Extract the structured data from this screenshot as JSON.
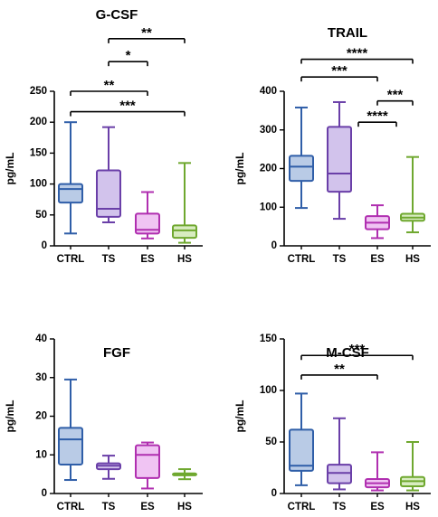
{
  "chart_data": [
    {
      "type": "box",
      "title": "G-CSF",
      "ylabel": "pg/mL",
      "ylim": [
        0,
        250
      ],
      "yticks": [
        0,
        50,
        100,
        150,
        200,
        250
      ],
      "categories": [
        "CTRL",
        "TS",
        "ES",
        "HS"
      ],
      "colors": [
        "#2f5ea8",
        "#6a3fa8",
        "#b02fb0",
        "#6fa82f"
      ],
      "fills": [
        "#b9cbe6",
        "#d2c3ec",
        "#f0c4f3",
        "#d8ecc0"
      ],
      "boxes": [
        {
          "min": 20,
          "q1": 70,
          "median": 92,
          "q3": 100,
          "max": 200
        },
        {
          "min": 38,
          "q1": 47,
          "median": 60,
          "q3": 122,
          "max": 192
        },
        {
          "min": 12,
          "q1": 20,
          "median": 26,
          "q3": 52,
          "max": 87
        },
        {
          "min": 5,
          "q1": 13,
          "median": 25,
          "q3": 33,
          "max": 134
        }
      ],
      "significance": [
        {
          "from": 1,
          "to": 3,
          "label": "**",
          "y": 335
        },
        {
          "from": 1,
          "to": 2,
          "label": "*",
          "y": 298
        },
        {
          "from": 0,
          "to": 2,
          "label": "**",
          "y": 250
        },
        {
          "from": 0,
          "to": 3,
          "label": "***",
          "y": 217
        }
      ]
    },
    {
      "type": "box",
      "title": "TRAIL",
      "ylabel": "pg/mL",
      "ylim": [
        0,
        400
      ],
      "yticks": [
        0,
        100,
        200,
        300,
        400
      ],
      "categories": [
        "CTRL",
        "TS",
        "ES",
        "HS"
      ],
      "colors": [
        "#2f5ea8",
        "#6a3fa8",
        "#b02fb0",
        "#6fa82f"
      ],
      "fills": [
        "#b9cbe6",
        "#d2c3ec",
        "#f0c4f3",
        "#d8ecc0"
      ],
      "boxes": [
        {
          "min": 98,
          "q1": 168,
          "median": 205,
          "q3": 233,
          "max": 358
        },
        {
          "min": 70,
          "q1": 140,
          "median": 187,
          "q3": 308,
          "max": 372
        },
        {
          "min": 20,
          "q1": 43,
          "median": 60,
          "q3": 77,
          "max": 105
        },
        {
          "min": 35,
          "q1": 65,
          "median": 73,
          "q3": 83,
          "max": 230
        }
      ],
      "significance": [
        {
          "from": 0,
          "to": 3,
          "label": "****",
          "y": 483
        },
        {
          "from": 0,
          "to": 2,
          "label": "***",
          "y": 437
        },
        {
          "from": 2,
          "to": 3,
          "label": "***",
          "y": 375
        },
        {
          "from": 2,
          "to": 2,
          "label": "****",
          "y": 320,
          "span_from": 1.5,
          "span_to": 2.5
        }
      ]
    },
    {
      "type": "box",
      "title": "FGF",
      "ylabel": "pg/mL",
      "ylim": [
        0,
        40
      ],
      "yticks": [
        0,
        10,
        20,
        30,
        40
      ],
      "categories": [
        "CTRL",
        "TS",
        "ES",
        "HS"
      ],
      "colors": [
        "#2f5ea8",
        "#6a3fa8",
        "#b02fb0",
        "#6fa82f"
      ],
      "fills": [
        "#b9cbe6",
        "#d2c3ec",
        "#f0c4f3",
        "#d8ecc0"
      ],
      "boxes": [
        {
          "min": 3.5,
          "q1": 7.5,
          "median": 14,
          "q3": 17,
          "max": 29.5
        },
        {
          "min": 3.8,
          "q1": 6.3,
          "median": 7.2,
          "q3": 7.8,
          "max": 9.8
        },
        {
          "min": 1.3,
          "q1": 4,
          "median": 10,
          "q3": 12.5,
          "max": 13.2
        },
        {
          "min": 3.7,
          "q1": 4.7,
          "median": 5,
          "q3": 5.2,
          "max": 6.3
        }
      ],
      "significance": []
    },
    {
      "type": "box",
      "title": "M-CSF",
      "ylabel": "pg/mL",
      "ylim": [
        0,
        150
      ],
      "yticks": [
        0,
        50,
        100,
        150
      ],
      "categories": [
        "CTRL",
        "TS",
        "ES",
        "HS"
      ],
      "colors": [
        "#2f5ea8",
        "#6a3fa8",
        "#b02fb0",
        "#6fa82f"
      ],
      "fills": [
        "#b9cbe6",
        "#d2c3ec",
        "#f0c4f3",
        "#d8ecc0"
      ],
      "boxes": [
        {
          "min": 8,
          "q1": 22,
          "median": 27,
          "q3": 62,
          "max": 97
        },
        {
          "min": 4,
          "q1": 10,
          "median": 20,
          "q3": 28,
          "max": 73
        },
        {
          "min": 3,
          "q1": 6,
          "median": 10,
          "q3": 14,
          "max": 40
        },
        {
          "min": 3,
          "q1": 7,
          "median": 12,
          "q3": 16,
          "max": 50
        }
      ],
      "significance": [
        {
          "from": 0,
          "to": 3,
          "label": "***",
          "y": 134
        },
        {
          "from": 0,
          "to": 2,
          "label": "**",
          "y": 115
        }
      ]
    }
  ]
}
